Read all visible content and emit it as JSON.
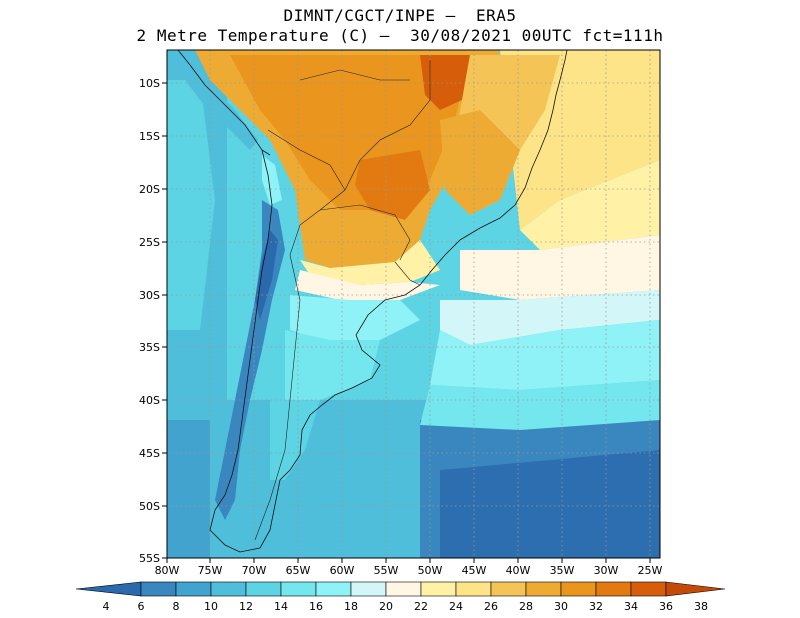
{
  "header": {
    "line1": "DIMNT/CGCT/INPE –  ERA5",
    "line2": "2 Metre Temperature (C) –  30/08/2021 00UTC fct=111h"
  },
  "map": {
    "lat_labels": [
      "10S",
      "15S",
      "20S",
      "25S",
      "30S",
      "35S",
      "40S",
      "45S",
      "50S",
      "55S"
    ],
    "lon_labels": [
      "80W",
      "75W",
      "70W",
      "65W",
      "60W",
      "55W",
      "50W",
      "45W",
      "40W",
      "35W",
      "30W",
      "25W"
    ]
  },
  "colorbar": {
    "labels": [
      "4",
      "6",
      "8",
      "10",
      "12",
      "14",
      "16",
      "18",
      "20",
      "22",
      "24",
      "26",
      "28",
      "30",
      "32",
      "34",
      "36",
      "38"
    ],
    "colors": [
      "#2a6aac",
      "#3a87c0",
      "#43a3cf",
      "#4fbedb",
      "#5cd4e4",
      "#73e6ee",
      "#8ff2f6",
      "#d3f6f9",
      "#fff7e3",
      "#fff2a6",
      "#fde489",
      "#f5c456",
      "#eeab33",
      "#e9951e",
      "#e27a11",
      "#d65e0b",
      "#c44a07"
    ]
  }
}
